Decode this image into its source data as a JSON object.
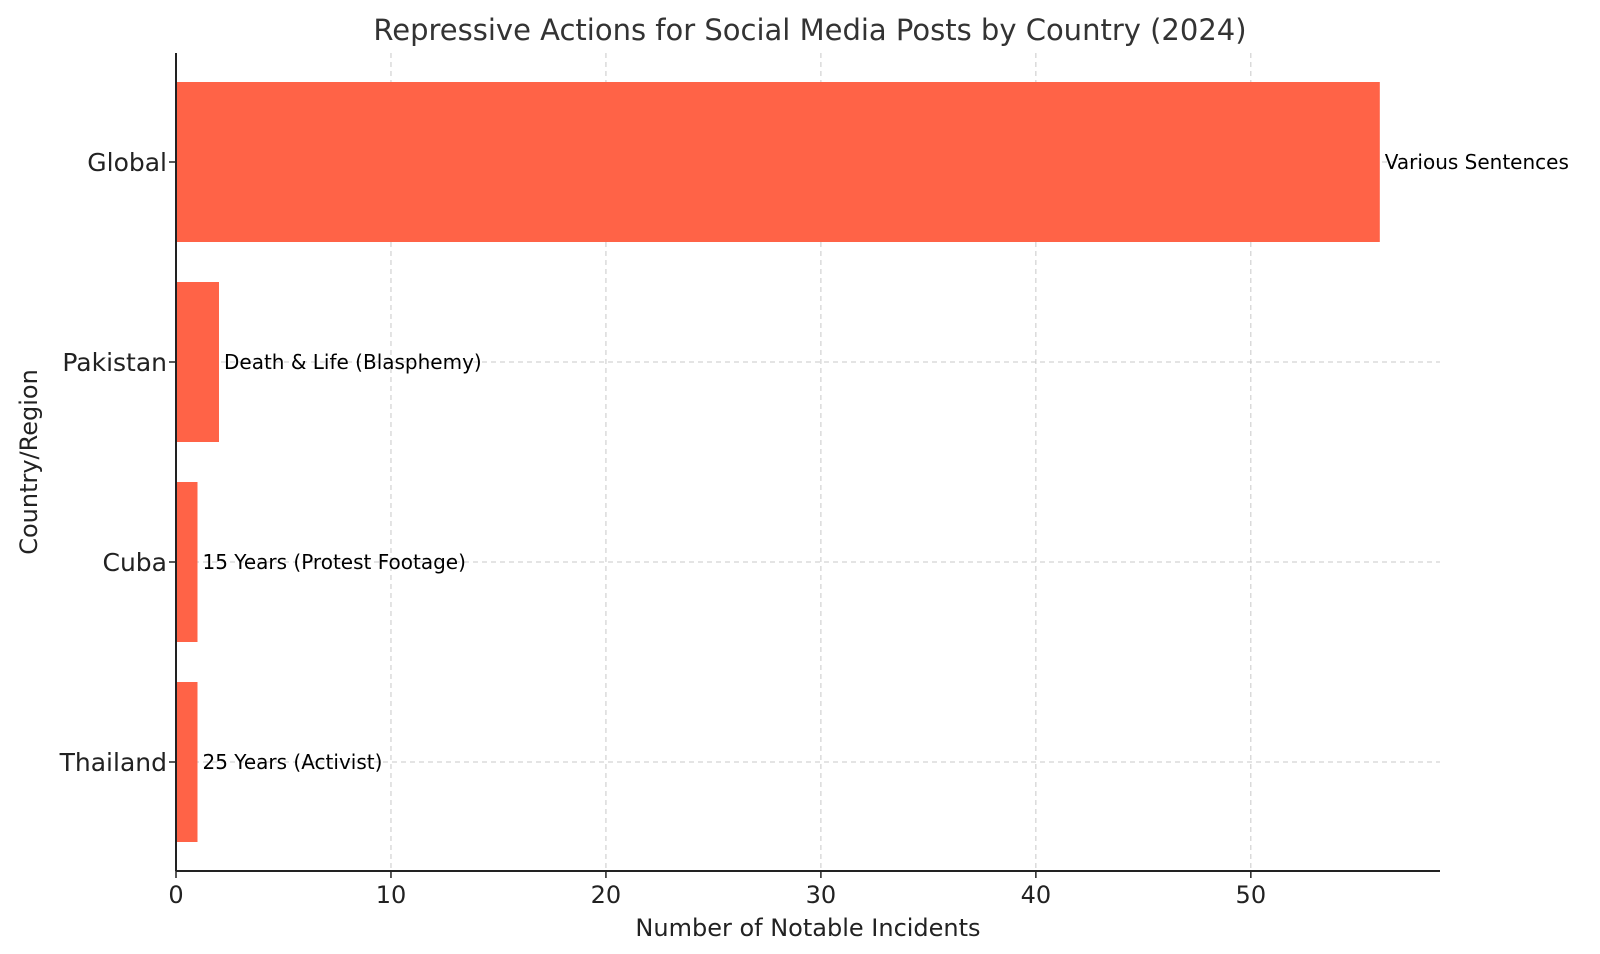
{
  "chart_data": {
    "type": "bar",
    "orientation": "horizontal",
    "title": "Repressive Actions for Social Media Posts by Country (2024)",
    "xlabel": "Number of Notable Incidents",
    "ylabel": "Country/Region",
    "categories": [
      "Global",
      "Pakistan",
      "Cuba",
      "Thailand"
    ],
    "values": [
      56,
      2,
      1,
      1
    ],
    "data_labels": [
      "Various Sentences",
      "Death & Life (Blasphemy)",
      "15 Years (Protest Footage)",
      "25 Years (Activist)"
    ],
    "xlim": [
      0,
      58.8
    ],
    "xticks": [
      0,
      10,
      20,
      30,
      40,
      50
    ],
    "grid": true,
    "bar_color": "#ff6347"
  }
}
